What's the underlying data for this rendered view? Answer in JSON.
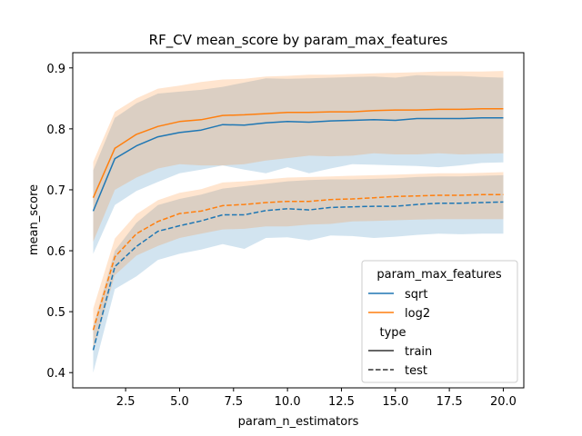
{
  "chart_data": {
    "type": "line",
    "title": "RF_CV mean_score by param_max_features",
    "xlabel": "param_n_estimators",
    "ylabel": "mean_score",
    "xlim": [
      0.05,
      20.95
    ],
    "ylim": [
      0.375,
      0.925
    ],
    "xticks": [
      2.5,
      5.0,
      7.5,
      10.0,
      12.5,
      15.0,
      17.5,
      20.0
    ],
    "xtick_labels": [
      "2.5",
      "5.0",
      "7.5",
      "10.0",
      "12.5",
      "15.0",
      "17.5",
      "20.0"
    ],
    "yticks": [
      0.4,
      0.5,
      0.6,
      0.7,
      0.8,
      0.9
    ],
    "ytick_labels": [
      "0.4",
      "0.5",
      "0.6",
      "0.7",
      "0.8",
      "0.9"
    ],
    "grid": false,
    "legend": {
      "position": "lower-right",
      "hue_title": "param_max_features",
      "style_title": "type",
      "hue_entries": [
        "sqrt",
        "log2"
      ],
      "style_entries": [
        "train",
        "test"
      ]
    },
    "x": [
      1,
      2,
      3,
      4,
      5,
      6,
      7,
      8,
      9,
      10,
      11,
      12,
      13,
      14,
      15,
      16,
      17,
      18,
      19,
      20
    ],
    "series": [
      {
        "name": "sqrt",
        "style": "train",
        "color": "#1f77b4",
        "values": [
          0.665,
          0.751,
          0.772,
          0.787,
          0.794,
          0.798,
          0.807,
          0.806,
          0.81,
          0.812,
          0.811,
          0.813,
          0.814,
          0.815,
          0.814,
          0.817,
          0.817,
          0.817,
          0.818,
          0.818
        ],
        "ci_low": [
          0.595,
          0.675,
          0.698,
          0.713,
          0.727,
          0.733,
          0.74,
          0.733,
          0.727,
          0.737,
          0.727,
          0.735,
          0.742,
          0.741,
          0.74,
          0.739,
          0.737,
          0.74,
          0.744,
          0.745
        ],
        "ci_high": [
          0.732,
          0.818,
          0.842,
          0.858,
          0.861,
          0.864,
          0.869,
          0.876,
          0.883,
          0.882,
          0.883,
          0.884,
          0.885,
          0.886,
          0.884,
          0.888,
          0.887,
          0.887,
          0.885,
          0.884
        ]
      },
      {
        "name": "log2",
        "style": "train",
        "color": "#ff7f0e",
        "values": [
          0.687,
          0.768,
          0.791,
          0.804,
          0.812,
          0.815,
          0.822,
          0.823,
          0.825,
          0.827,
          0.827,
          0.828,
          0.828,
          0.83,
          0.831,
          0.831,
          0.832,
          0.832,
          0.833,
          0.833
        ],
        "ci_low": [
          0.615,
          0.7,
          0.72,
          0.735,
          0.742,
          0.74,
          0.74,
          0.742,
          0.748,
          0.752,
          0.756,
          0.755,
          0.756,
          0.76,
          0.758,
          0.758,
          0.76,
          0.758,
          0.759,
          0.76
        ],
        "ci_high": [
          0.746,
          0.828,
          0.85,
          0.866,
          0.871,
          0.877,
          0.881,
          0.882,
          0.886,
          0.887,
          0.889,
          0.889,
          0.89,
          0.891,
          0.892,
          0.893,
          0.894,
          0.894,
          0.894,
          0.895
        ]
      },
      {
        "name": "sqrt",
        "style": "test",
        "color": "#1f77b4",
        "values": [
          0.437,
          0.574,
          0.607,
          0.632,
          0.641,
          0.649,
          0.659,
          0.659,
          0.666,
          0.669,
          0.667,
          0.671,
          0.672,
          0.673,
          0.673,
          0.676,
          0.678,
          0.678,
          0.679,
          0.68
        ],
        "ci_low": [
          0.4,
          0.537,
          0.558,
          0.585,
          0.595,
          0.602,
          0.611,
          0.603,
          0.621,
          0.622,
          0.617,
          0.625,
          0.624,
          0.621,
          0.623,
          0.626,
          0.628,
          0.627,
          0.628,
          0.628
        ],
        "ci_high": [
          0.476,
          0.6,
          0.646,
          0.675,
          0.685,
          0.692,
          0.702,
          0.706,
          0.71,
          0.714,
          0.716,
          0.717,
          0.717,
          0.718,
          0.719,
          0.721,
          0.722,
          0.722,
          0.723,
          0.724
        ]
      },
      {
        "name": "log2",
        "style": "test",
        "color": "#ff7f0e",
        "values": [
          0.47,
          0.59,
          0.628,
          0.648,
          0.661,
          0.665,
          0.674,
          0.676,
          0.679,
          0.681,
          0.681,
          0.684,
          0.685,
          0.687,
          0.689,
          0.69,
          0.691,
          0.691,
          0.692,
          0.692
        ],
        "ci_low": [
          0.437,
          0.56,
          0.592,
          0.608,
          0.621,
          0.628,
          0.635,
          0.636,
          0.64,
          0.64,
          0.643,
          0.644,
          0.648,
          0.649,
          0.65,
          0.651,
          0.652,
          0.652,
          0.652,
          0.652
        ],
        "ci_high": [
          0.505,
          0.62,
          0.66,
          0.683,
          0.695,
          0.701,
          0.712,
          0.714,
          0.717,
          0.72,
          0.721,
          0.722,
          0.723,
          0.724,
          0.725,
          0.726,
          0.727,
          0.727,
          0.728,
          0.729
        ]
      }
    ]
  }
}
